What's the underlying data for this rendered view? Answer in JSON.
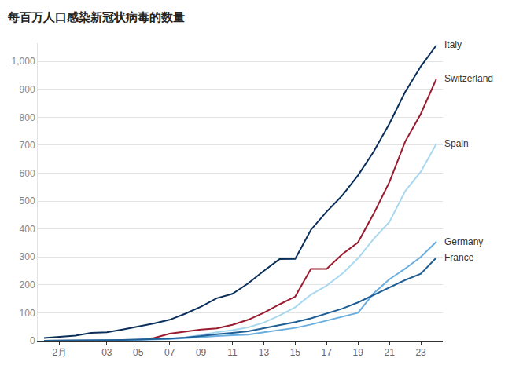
{
  "chart_data": {
    "type": "line",
    "title": "每百万人口感染新冠状病毒的数量",
    "categories": [
      null,
      "2月",
      null,
      null,
      "03",
      null,
      "05",
      null,
      "07",
      null,
      "09",
      null,
      "11",
      null,
      "13",
      null,
      "15",
      null,
      "17",
      null,
      "19",
      null,
      "21",
      null,
      "23",
      null
    ],
    "series": [
      {
        "name": "Italy",
        "color": "#0b2f5b",
        "values": [
          10,
          14,
          18,
          28,
          30,
          40,
          50,
          62,
          75,
          97,
          122,
          152,
          168,
          205,
          250,
          292,
          293,
          397,
          462,
          520,
          592,
          677,
          777,
          890,
          982,
          1058
        ]
      },
      {
        "name": "Switzerland",
        "color": "#9b1b30",
        "values": [
          0,
          0,
          1,
          1,
          2,
          2,
          3,
          10,
          25,
          32,
          40,
          44,
          57,
          75,
          100,
          130,
          158,
          257,
          257,
          310,
          352,
          455,
          568,
          712,
          812,
          938
        ]
      },
      {
        "name": "Spain",
        "color": "#a8d8f0",
        "values": [
          0,
          0,
          1,
          1,
          2,
          3,
          4,
          6,
          8,
          12,
          22,
          30,
          38,
          48,
          65,
          90,
          120,
          165,
          197,
          240,
          295,
          365,
          425,
          535,
          605,
          705
        ]
      },
      {
        "name": "Germany",
        "color": "#6aaee0",
        "values": [
          0,
          0,
          1,
          1,
          2,
          2,
          3,
          4,
          6,
          9,
          14,
          17,
          20,
          22,
          30,
          38,
          46,
          58,
          72,
          86,
          100,
          170,
          220,
          258,
          300,
          355
        ]
      },
      {
        "name": "France",
        "color": "#1f5f96",
        "values": [
          0,
          0,
          1,
          1,
          2,
          3,
          4,
          5,
          8,
          11,
          18,
          23,
          28,
          34,
          45,
          55,
          67,
          80,
          98,
          115,
          137,
          163,
          190,
          217,
          240,
          298
        ]
      }
    ],
    "ylim": [
      0,
      1065
    ],
    "yticks": [
      0,
      100,
      200,
      300,
      400,
      500,
      600,
      700,
      800,
      900,
      {
        "value": 1000,
        "label": "1,000"
      }
    ],
    "grid": true
  }
}
